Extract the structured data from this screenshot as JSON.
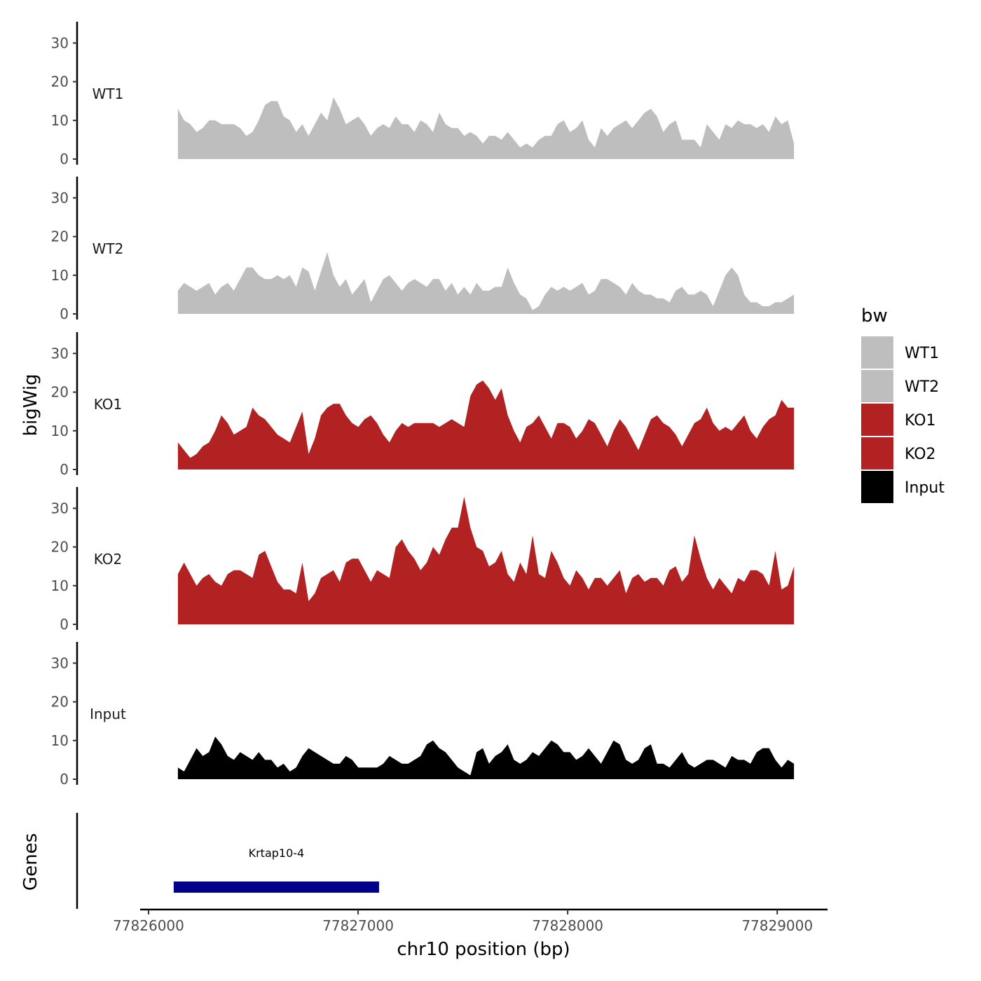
{
  "chart_data": {
    "type": "area",
    "ylabel": "bigWig",
    "xlabel": "chr10 position (bp)",
    "genes_label": "Genes",
    "ylim": [
      0,
      35
    ],
    "yticks": [
      0,
      10,
      20,
      30
    ],
    "xlim": [
      77825980,
      77829240
    ],
    "xticks": [
      77826000,
      77827000,
      77828000,
      77829000
    ],
    "x_tick_labels": [
      "77826000",
      "77827000",
      "77828000",
      "77829000"
    ],
    "legend": {
      "title": "bw",
      "entries": [
        {
          "label": "WT1",
          "color": "#bebebe"
        },
        {
          "label": "WT2",
          "color": "#bebebe"
        },
        {
          "label": "KO1",
          "color": "#b22222"
        },
        {
          "label": "KO2",
          "color": "#b22222"
        },
        {
          "label": "Input",
          "color": "#000000"
        }
      ]
    },
    "series": [
      {
        "name": "WT1",
        "color": "#bebebe",
        "x_start": 77826140,
        "x_end": 77829080,
        "values": [
          13,
          10,
          9,
          7,
          8,
          10,
          10,
          9,
          9,
          9,
          8,
          6,
          7,
          10,
          14,
          15,
          15,
          11,
          10,
          7,
          9,
          6,
          9,
          12,
          10,
          16,
          13,
          9,
          10,
          11,
          9,
          6,
          8,
          9,
          8,
          11,
          9,
          9,
          7,
          10,
          9,
          7,
          12,
          9,
          8,
          8,
          6,
          7,
          6,
          4,
          6,
          6,
          5,
          7,
          5,
          3,
          4,
          3,
          5,
          6,
          6,
          9,
          10,
          7,
          8,
          10,
          5,
          3,
          8,
          6,
          8,
          9,
          10,
          8,
          10,
          12,
          13,
          11,
          7,
          9,
          10,
          5,
          5,
          5,
          3,
          9,
          7,
          5,
          9,
          8,
          10,
          9,
          9,
          8,
          9,
          7,
          11,
          9,
          10,
          4
        ]
      },
      {
        "name": "WT2",
        "color": "#bebebe",
        "x_start": 77826140,
        "x_end": 77829080,
        "values": [
          6,
          8,
          7,
          6,
          7,
          8,
          5,
          7,
          8,
          6,
          9,
          12,
          12,
          10,
          9,
          9,
          10,
          9,
          10,
          7,
          12,
          11,
          6,
          11,
          16,
          10,
          7,
          9,
          5,
          7,
          9,
          3,
          6,
          9,
          10,
          8,
          6,
          8,
          9,
          8,
          7,
          9,
          9,
          6,
          8,
          5,
          7,
          5,
          8,
          6,
          6,
          7,
          7,
          12,
          8,
          5,
          4,
          1,
          2,
          5,
          7,
          6,
          7,
          6,
          7,
          8,
          5,
          6,
          9,
          9,
          8,
          7,
          5,
          8,
          6,
          5,
          5,
          4,
          4,
          3,
          6,
          7,
          5,
          5,
          6,
          5,
          2,
          6,
          10,
          12,
          10,
          5,
          3,
          3,
          2,
          2,
          3,
          3,
          4,
          5
        ]
      },
      {
        "name": "KO1",
        "color": "#b22222",
        "x_start": 77826140,
        "x_end": 77829080,
        "values": [
          7,
          5,
          3,
          4,
          6,
          7,
          10,
          14,
          12,
          9,
          10,
          11,
          16,
          14,
          13,
          11,
          9,
          8,
          7,
          11,
          15,
          4,
          8,
          14,
          16,
          17,
          17,
          14,
          12,
          11,
          13,
          14,
          12,
          9,
          7,
          10,
          12,
          11,
          12,
          12,
          12,
          12,
          11,
          12,
          13,
          12,
          11,
          19,
          22,
          23,
          21,
          18,
          21,
          14,
          10,
          7,
          11,
          12,
          14,
          11,
          8,
          12,
          12,
          11,
          8,
          10,
          13,
          12,
          9,
          6,
          10,
          13,
          11,
          8,
          5,
          9,
          13,
          14,
          12,
          11,
          9,
          6,
          9,
          12,
          13,
          16,
          12,
          10,
          11,
          10,
          12,
          14,
          10,
          8,
          11,
          13,
          14,
          18,
          16,
          16
        ]
      },
      {
        "name": "KO2",
        "color": "#b22222",
        "x_start": 77826140,
        "x_end": 77829080,
        "values": [
          13,
          16,
          13,
          10,
          12,
          13,
          11,
          10,
          13,
          14,
          14,
          13,
          12,
          18,
          19,
          15,
          11,
          9,
          9,
          8,
          16,
          6,
          8,
          12,
          13,
          14,
          11,
          16,
          17,
          17,
          14,
          11,
          14,
          13,
          12,
          20,
          22,
          19,
          17,
          14,
          16,
          20,
          18,
          22,
          25,
          25,
          33,
          25,
          20,
          19,
          15,
          16,
          19,
          13,
          11,
          16,
          13,
          23,
          13,
          12,
          19,
          16,
          12,
          10,
          14,
          12,
          9,
          12,
          12,
          10,
          12,
          14,
          8,
          12,
          13,
          11,
          12,
          12,
          10,
          14,
          15,
          11,
          13,
          23,
          17,
          12,
          9,
          12,
          10,
          8,
          12,
          11,
          14,
          14,
          13,
          10,
          19,
          9,
          10,
          15
        ]
      },
      {
        "name": "Input",
        "color": "#000000",
        "x_start": 77826140,
        "x_end": 77829080,
        "values": [
          3,
          2,
          5,
          8,
          6,
          7,
          11,
          9,
          6,
          5,
          7,
          6,
          5,
          7,
          5,
          5,
          3,
          4,
          2,
          3,
          6,
          8,
          7,
          6,
          5,
          4,
          4,
          6,
          5,
          3,
          3,
          3,
          3,
          4,
          6,
          5,
          4,
          4,
          5,
          6,
          9,
          10,
          8,
          7,
          5,
          3,
          2,
          1,
          7,
          8,
          4,
          6,
          7,
          9,
          5,
          4,
          5,
          7,
          6,
          8,
          10,
          9,
          7,
          7,
          5,
          6,
          8,
          6,
          4,
          7,
          10,
          9,
          5,
          4,
          5,
          8,
          9,
          4,
          4,
          3,
          5,
          7,
          4,
          3,
          4,
          5,
          5,
          4,
          3,
          6,
          5,
          5,
          4,
          7,
          8,
          8,
          5,
          3,
          5,
          4
        ]
      }
    ],
    "genes": [
      {
        "name": "Krtap10-4",
        "start": 77826120,
        "end": 77827100,
        "color": "#00008b"
      }
    ]
  }
}
